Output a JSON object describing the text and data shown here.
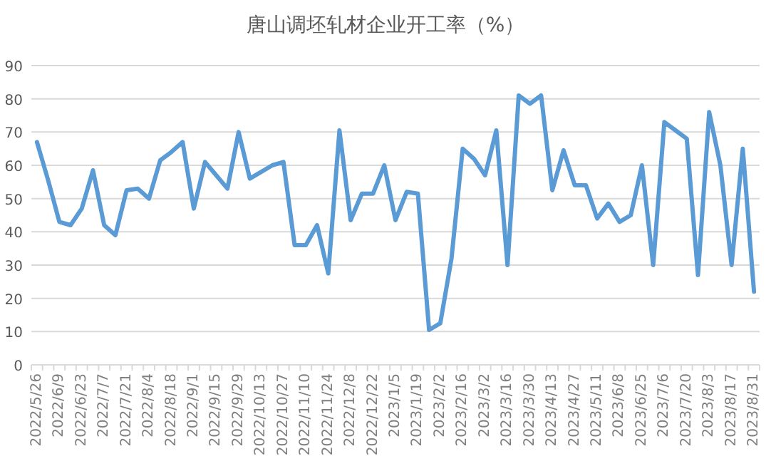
{
  "chart_data": {
    "type": "line",
    "title": "唐山调坯轧材企业开工率（%）",
    "categories": [
      "2022/5/26",
      null,
      "2022/6/9",
      null,
      "2022/6/23",
      null,
      "2022/7/7",
      null,
      "2022/7/21",
      null,
      "2022/8/4",
      null,
      "2022/8/18",
      null,
      "2022/9/1",
      null,
      "2022/9/15",
      null,
      "2022/9/29",
      null,
      "2022/10/13",
      null,
      "2022/10/27",
      null,
      "2022/11/10",
      null,
      "2022/11/24",
      null,
      "2022/12/8",
      null,
      "2022/12/22",
      null,
      "2023/1/5",
      null,
      "2023/1/19",
      null,
      "2023/2/2",
      null,
      "2023/2/16",
      null,
      "2023/3/2",
      null,
      "2023/3/16",
      null,
      "2023/3/30",
      null,
      "2023/4/13",
      null,
      "2023/4/27",
      null,
      "2023/5/11",
      null,
      "2023/6/8",
      null,
      "2023/6/25",
      null,
      "2023/7/6",
      null,
      "2023/7/20",
      null,
      "2023/8/3",
      null,
      "2023/8/17",
      null,
      "2023/8/31"
    ],
    "series": [
      {
        "color": "#5b9bd5",
        "values": [
          67,
          55.5,
          43,
          42,
          47,
          58.5,
          42,
          39,
          52.5,
          53,
          50,
          61.5,
          64,
          67,
          47,
          61,
          57,
          53,
          70,
          56,
          58,
          60,
          61,
          36,
          36,
          42,
          27.5,
          70.5,
          43.5,
          51.5,
          51.5,
          60,
          43.5,
          52,
          51.5,
          10.5,
          12.5,
          32,
          65,
          62,
          57,
          70.5,
          30,
          81,
          78.5,
          81,
          52.5,
          64.5,
          54,
          54,
          44,
          48.5,
          43,
          45,
          60,
          30,
          73,
          70.5,
          68,
          27,
          76,
          60,
          30,
          65,
          22
        ]
      }
    ],
    "ylim": [
      0,
      90
    ],
    "yticks": [
      0,
      10,
      20,
      30,
      40,
      50,
      60,
      70,
      80,
      90
    ],
    "grid": "y",
    "line_style": "solid",
    "marker": "none"
  }
}
